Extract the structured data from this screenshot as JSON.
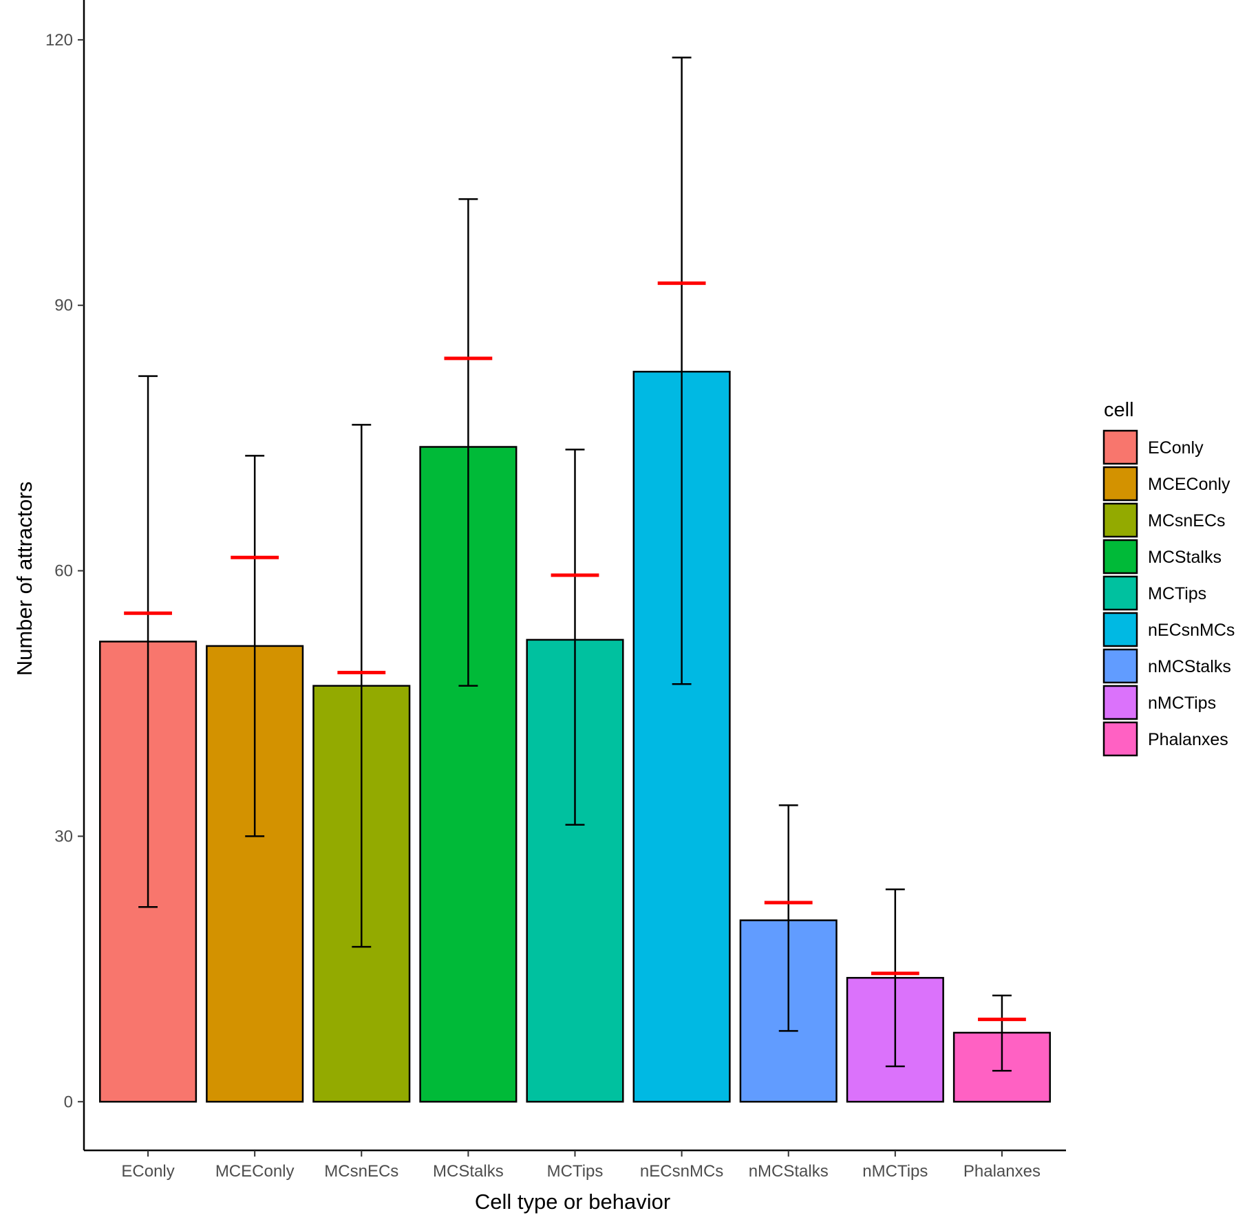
{
  "chart_data": {
    "type": "bar",
    "title": "",
    "xlabel": "Cell type or behavior",
    "ylabel": "Number of attractors",
    "ylim": [
      -5.5,
      124.5
    ],
    "yticks": [
      0,
      30,
      60,
      90,
      120
    ],
    "grid": false,
    "categories": [
      "EConly",
      "MCEConly",
      "MCsnECs",
      "MCStalks",
      "MCTips",
      "nECsnMCs",
      "nMCStalks",
      "nMCTips",
      "Phalanxes"
    ],
    "colors": [
      "#F8766D",
      "#D39200",
      "#93AA00",
      "#00BA38",
      "#00C19F",
      "#00B9E3",
      "#619CFF",
      "#DB72FB",
      "#FF61C3"
    ],
    "values": [
      52,
      51.5,
      47,
      74,
      52.2,
      82.5,
      20.5,
      14,
      7.8
    ],
    "error_low": [
      22,
      30,
      17.5,
      47,
      31.3,
      47.2,
      8,
      4,
      3.5
    ],
    "error_high": [
      82,
      73,
      76.5,
      102,
      73.7,
      118,
      33.5,
      24,
      12
    ],
    "reference_values": [
      55.2,
      61.5,
      48.5,
      84,
      59.5,
      92.5,
      22.5,
      14.5,
      9.3
    ],
    "reference_color": "#FF0000",
    "legend": {
      "title": "cell",
      "position": "right",
      "entries": [
        "EConly",
        "MCEConly",
        "MCsnECs",
        "MCStalks",
        "MCTips",
        "nECsnMCs",
        "nMCStalks",
        "nMCTips",
        "Phalanxes"
      ]
    }
  }
}
